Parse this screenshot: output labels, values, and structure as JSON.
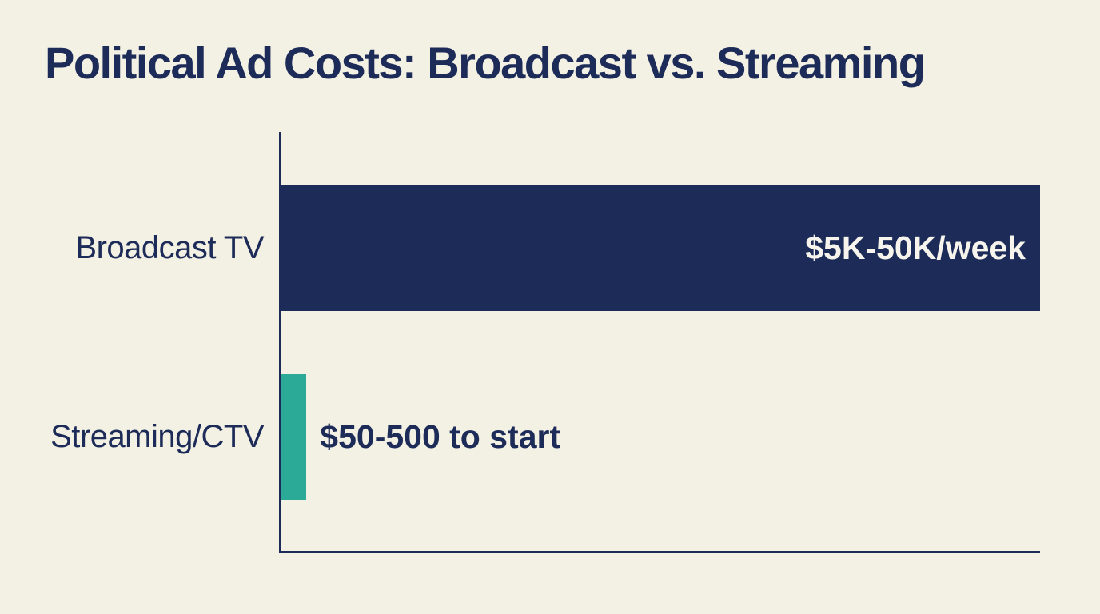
{
  "title": "Political Ad Costs: Broadcast vs. Streaming",
  "colors": {
    "background": "#f3f0e4",
    "navy": "#1c2b57",
    "teal": "#2bab97",
    "value_label_on_bar": "#f6f4ec"
  },
  "chart_data": {
    "type": "bar",
    "orientation": "horizontal",
    "title": "Political Ad Costs: Broadcast vs. Streaming",
    "categories": [
      "Broadcast TV",
      "Streaming/CTV"
    ],
    "series": [
      {
        "name": "Broadcast TV",
        "value_label": "$5K-50K/week",
        "value_range_usd": [
          5000,
          50000
        ],
        "value_unit": "per week",
        "bar_relative_length": 1.0,
        "bar_color": "#1c2b57",
        "label_position": "inside-right",
        "label_color": "#f6f4ec"
      },
      {
        "name": "Streaming/CTV",
        "value_label": "$50-500 to start",
        "value_range_usd": [
          50,
          500
        ],
        "value_unit": "to start",
        "bar_relative_length": 0.034,
        "bar_color": "#2bab97",
        "label_position": "outside-right",
        "label_color": "#1c2b57"
      }
    ],
    "axes": {
      "x_axis_visible": true,
      "y_axis_visible": true,
      "tick_labels": "none",
      "grid": false
    },
    "legend": "none"
  }
}
